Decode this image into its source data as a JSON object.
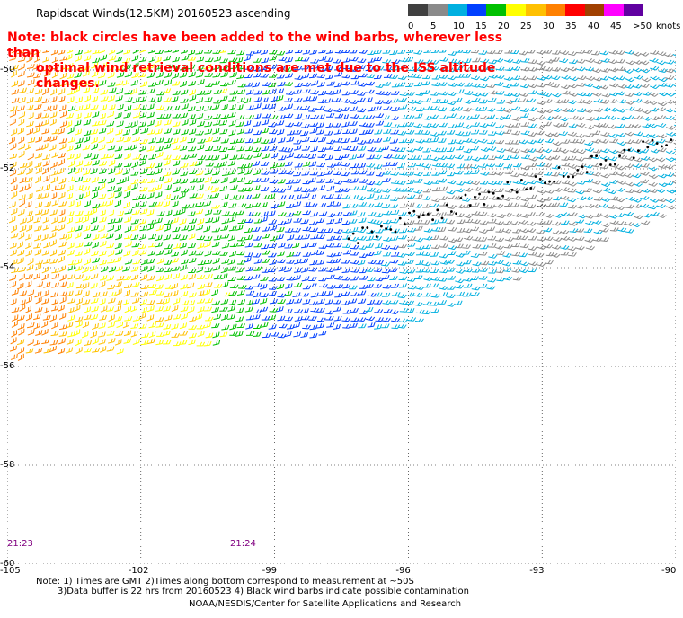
{
  "header": {
    "title": "Rapidscat Winds(12.5KM) 20160523 ascending",
    "note_line1": "Note: black circles have been added to the wind barbs, wherever less than",
    "note_line2": "optimal wind retrieval conditions are met due to the ISS altitude changes."
  },
  "colorbar": {
    "unit": "knots",
    "labels": [
      "0",
      "5",
      "10",
      "15",
      "20",
      "25",
      "30",
      "35",
      "40",
      "45",
      ">50"
    ],
    "colors": [
      "#404040",
      "#8a8a8a",
      "#00b0e0",
      "#0040ff",
      "#00c000",
      "#ffff00",
      "#ffc000",
      "#ff8000",
      "#ff0000",
      "#a04000",
      "#ff00ff",
      "#6000a0"
    ]
  },
  "axes": {
    "lat_labels": [
      "-50",
      "-52",
      "-54",
      "-56",
      "-58",
      "-60"
    ],
    "lat_values": [
      -50,
      -52,
      -54,
      -56,
      -58,
      -60
    ],
    "lon_labels": [
      "-105",
      "-102",
      "-99",
      "-96",
      "-93",
      "-90"
    ],
    "lon_values": [
      -105,
      -102,
      -99,
      -96,
      -93,
      -90
    ]
  },
  "times": [
    {
      "label": "21:23",
      "lon": -105
    },
    {
      "label": "21:24",
      "lon": -100
    }
  ],
  "footer": {
    "line1": "Note: 1) Times are GMT 2)Times along bottom correspond to measurement at ~50S",
    "line2": "3)Data buffer is 22 hrs from 20160523 4) Black wind barbs indicate possible contamination",
    "line3": "NOAA/NESDIS/Center for Satellite Applications and Research"
  }
}
